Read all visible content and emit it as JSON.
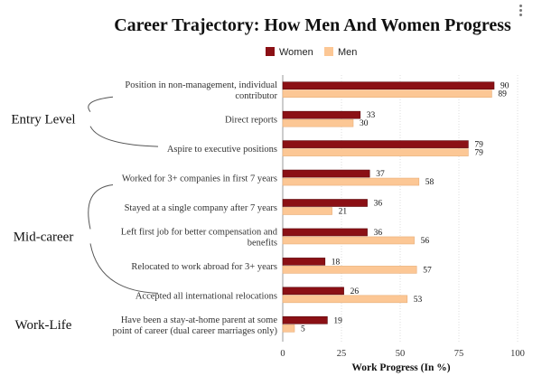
{
  "chart_data": {
    "type": "bar",
    "orientation": "horizontal",
    "title": "Career Trajectory: How Men And Women Progress",
    "xlabel": "Work Progress (In %)",
    "xlim": [
      0,
      100
    ],
    "xticks": [
      0,
      25,
      50,
      75,
      100
    ],
    "legend_position": "top",
    "categories": [
      [
        "Position in non-management, individual",
        "contributor"
      ],
      [
        "Direct reports"
      ],
      [
        "Aspire to executive positions"
      ],
      [
        "Worked for 3+ companies in first 7 years"
      ],
      [
        "Stayed at a single company after 7 years"
      ],
      [
        "Left first job for better compensation and",
        "benefits"
      ],
      [
        "Relocated to work abroad for 3+ years"
      ],
      [
        "Accepted all international relocations"
      ],
      [
        "Have been a stay-at-home parent at some",
        "point of career (dual career marriages only)"
      ]
    ],
    "series": [
      {
        "name": "Women",
        "color": "#8b1015",
        "values": [
          90,
          33,
          79,
          37,
          36,
          36,
          18,
          26,
          19
        ]
      },
      {
        "name": "Men",
        "color": "#fcc795",
        "values": [
          89,
          30,
          79,
          58,
          21,
          56,
          57,
          53,
          5
        ]
      }
    ],
    "groups": [
      {
        "label": "Entry Level",
        "first": 0,
        "last": 2
      },
      {
        "label": "Mid-career",
        "first": 3,
        "last": 7
      },
      {
        "label": "Work-Life",
        "first": 8,
        "last": 8
      }
    ]
  }
}
